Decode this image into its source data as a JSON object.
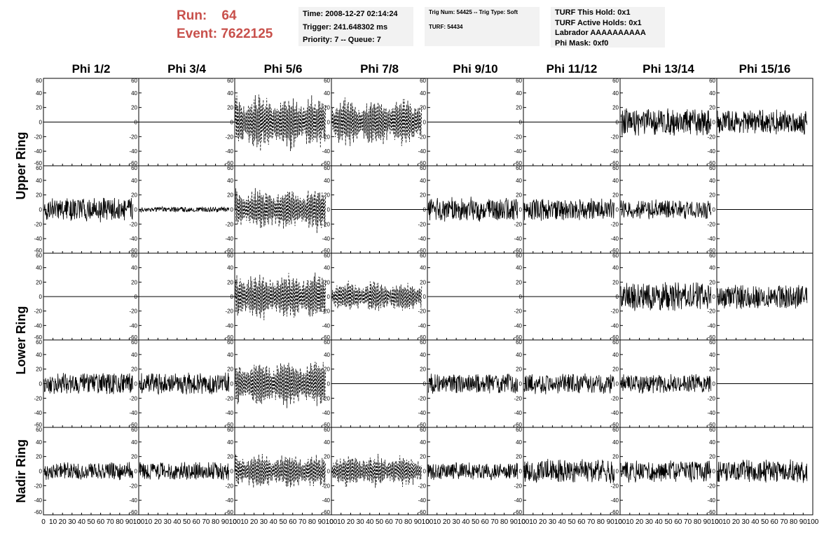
{
  "header": {
    "run_label": "Run:",
    "run_value": "64",
    "event_label": "Event:",
    "event_value": "7622125",
    "time": "Time: 2008-12-27 02:14:24",
    "trigger": "Trigger: 241.648302 ms",
    "priority": "Priority: 7 -- Queue: 7",
    "trig_num": "Trig Num: 54425 -- Trig Type: Soft",
    "turf": "TURF: 54434",
    "turf_this_hold": "TURF This Hold: 0x1",
    "turf_active_holds": "TURF Active Holds: 0x1",
    "labrador": "Labrador AAAAAAAAAA",
    "phi_mask": "Phi Mask: 0xf0"
  },
  "colors": {
    "title": "#c8504b",
    "info_bg": "#f2f2f2",
    "trace": "#000000"
  },
  "chart_data": {
    "type": "line",
    "columns": [
      "Phi 1/2",
      "Phi 3/4",
      "Phi 5/6",
      "Phi 7/8",
      "Phi 9/10",
      "Phi 11/12",
      "Phi 13/14",
      "Phi 15/16"
    ],
    "ring_labels": [
      "Upper Ring",
      "Lower Ring",
      "Nadir Ring"
    ],
    "ylim": [
      -60,
      60
    ],
    "xlim": [
      0,
      100
    ],
    "y_ticks": [
      "60",
      "40",
      "20",
      "0",
      "-20",
      "-40",
      "-60"
    ],
    "x_ticks": [
      "0",
      "10",
      "20",
      "30",
      "40",
      "50",
      "60",
      "70",
      "80",
      "90",
      "100"
    ],
    "rows": [
      {
        "kind": [
          "flat",
          "flat",
          "dash",
          "dash",
          "flat",
          "flat",
          "noise",
          "noise"
        ],
        "amp": [
          0,
          0,
          40,
          35,
          0,
          0,
          20,
          18
        ]
      },
      {
        "kind": [
          "noise",
          "noise",
          "dash",
          "flat",
          "noise",
          "noise",
          "noise",
          "flat"
        ],
        "amp": [
          18,
          4,
          30,
          0,
          18,
          16,
          14,
          0
        ]
      },
      {
        "kind": [
          "flat",
          "flat",
          "dash",
          "dash",
          "flat",
          "flat",
          "noise",
          "noise"
        ],
        "amp": [
          0,
          0,
          35,
          22,
          0,
          0,
          22,
          18
        ]
      },
      {
        "kind": [
          "noise",
          "noise",
          "dash",
          "flat",
          "noise",
          "noise",
          "noise",
          "flat"
        ],
        "amp": [
          16,
          16,
          35,
          0,
          15,
          15,
          14,
          0
        ]
      },
      {
        "kind": [
          "noise",
          "noise",
          "dash",
          "dash",
          "noise",
          "noise",
          "noise",
          "noise"
        ],
        "amp": [
          13,
          14,
          25,
          22,
          13,
          18,
          16,
          17
        ]
      }
    ]
  }
}
